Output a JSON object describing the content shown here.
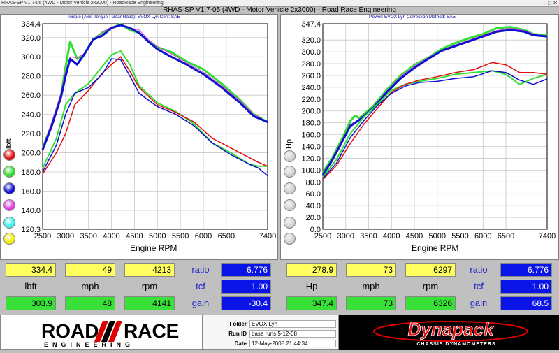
{
  "window": {
    "titlebar_text": "RHAS-SP V1.7-05  (4WD - Motor Vehicle 2x3000) - RoadRace Engineering",
    "main_title": "RHAS-SP V1.7-05   (4WD - Motor Vehicle 2x3000) - Road Race Engineering"
  },
  "left_panel": {
    "subtitle": "Torque (Axle Torque : Gear Ratio): EVOX Lyn     Corr: SAE",
    "ylabel": "lbft",
    "xlabel": "Engine RPM"
  },
  "right_panel": {
    "subtitle": "Power: EVOX Lyn     Correction Method: SAE",
    "ylabel": "Hp",
    "xlabel": "Engine RPM"
  },
  "legend_left": [
    {
      "color": "#e01010",
      "icon": "red-run-dot"
    },
    {
      "color": "#30e030",
      "icon": "green-run-dot"
    },
    {
      "color": "#1010d0",
      "icon": "blue-run-dot"
    },
    {
      "color": "#e040e0",
      "icon": "magenta-run-dot"
    },
    {
      "color": "#40f0f0",
      "icon": "cyan-run-dot"
    },
    {
      "color": "#f0f010",
      "icon": "yellow-run-dot"
    }
  ],
  "readouts": {
    "left": {
      "row1": [
        "334.4",
        "49",
        "4213"
      ],
      "labels": [
        "lbft",
        "mph",
        "rpm"
      ],
      "row3": [
        "303.9",
        "48",
        "4141"
      ],
      "ratio_label": "ratio",
      "ratio": "6.776",
      "tcf_label": "tcf",
      "tcf": "1.00",
      "gain_label": "gain",
      "gain": "-30.4"
    },
    "right": {
      "row1": [
        "278.9",
        "73",
        "6297"
      ],
      "labels": [
        "Hp",
        "mph",
        "rpm"
      ],
      "row3": [
        "347.4",
        "73",
        "6326"
      ],
      "ratio_label": "ratio",
      "ratio": "6.776",
      "tcf_label": "tcf",
      "tcf": "1.00",
      "gain_label": "gain",
      "gain": "68.5"
    }
  },
  "footer": {
    "folder_label": "Folder",
    "folder": "EVOX Lyn",
    "runid_label": "Run ID",
    "runid": "base runs 5-12-08",
    "date_label": "Date",
    "date": "12-May-2008  21:44:34",
    "rr_logo_text": "ROAD",
    "rr_logo_text2": "RACE",
    "rr_logo_sub": "ENGINEERING",
    "dp_logo_text": "Dynapack",
    "dp_logo_sub": "CHASSIS DYNAMOMETERS"
  },
  "chart_data": [
    {
      "type": "line",
      "title": "Torque (Axle Torque : Gear Ratio): EVOX Lyn     Corr: SAE",
      "xlabel": "Engine RPM",
      "ylabel": "lbft",
      "xlim": [
        2500,
        7400
      ],
      "ylim": [
        120.3,
        334.4
      ],
      "xticks": [
        "2500",
        "3000",
        "3500",
        "4000",
        "4500",
        "5000",
        "5500",
        "6000",
        "6500",
        "7400"
      ],
      "yticks": [
        "334.4",
        "320.0",
        "300.0",
        "280.0",
        "260.0",
        "240.0",
        "220.0",
        "200.0",
        "180.0",
        "160.0",
        "140.0",
        "120.3"
      ],
      "grid": true,
      "series": [
        {
          "color": "#30e030",
          "width": 3,
          "x": [
            2500,
            2700,
            2900,
            3000,
            3100,
            3150,
            3250,
            3400,
            3600,
            3800,
            4000,
            4200,
            4400,
            4600,
            4800,
            5000,
            5300,
            5600,
            6000,
            6400,
            6800,
            7100,
            7400
          ],
          "y": [
            205,
            230,
            260,
            290,
            316,
            310,
            298,
            302,
            318,
            325,
            330,
            334,
            328,
            325,
            316,
            310,
            305,
            296,
            287,
            272,
            255,
            240,
            232
          ]
        },
        {
          "color": "#e040e0",
          "width": 1,
          "x": [
            2500,
            2700,
            2900,
            3000,
            3100,
            3250,
            3400,
            3600,
            3800,
            4000,
            4200,
            4400,
            4600,
            4800,
            5000,
            5300,
            5600,
            6000,
            6400,
            6800,
            7100,
            7400
          ],
          "y": [
            205,
            232,
            262,
            285,
            300,
            299,
            303,
            318,
            326,
            331,
            333,
            330,
            328,
            318,
            311,
            303,
            295,
            284,
            270,
            254,
            240,
            232
          ]
        },
        {
          "color": "#1010d0",
          "width": 3,
          "x": [
            2500,
            2700,
            2900,
            3000,
            3100,
            3250,
            3400,
            3600,
            3800,
            4000,
            4200,
            4400,
            4600,
            4800,
            5000,
            5300,
            5600,
            6000,
            6400,
            6800,
            7100,
            7400
          ],
          "y": [
            203,
            228,
            258,
            280,
            298,
            292,
            302,
            318,
            322,
            330,
            333,
            330,
            325,
            316,
            308,
            300,
            293,
            282,
            268,
            252,
            238,
            232
          ]
        },
        {
          "color": "#30e030",
          "width": 2,
          "x": [
            2500,
            2800,
            3000,
            3200,
            3500,
            3800,
            4000,
            4200,
            4400,
            4600,
            5000,
            5400,
            5800,
            6200,
            6600,
            7000,
            7200,
            7400
          ],
          "y": [
            184,
            215,
            250,
            262,
            272,
            290,
            302,
            306,
            292,
            270,
            252,
            243,
            230,
            210,
            200,
            188,
            186,
            186
          ]
        },
        {
          "color": "#e01010",
          "width": 1.5,
          "x": [
            2500,
            2800,
            3000,
            3200,
            3500,
            3800,
            4000,
            4200,
            4400,
            4600,
            5000,
            5400,
            5800,
            6200,
            6600,
            7000,
            7200,
            7400
          ],
          "y": [
            178,
            200,
            220,
            250,
            265,
            283,
            292,
            300,
            285,
            268,
            250,
            242,
            232,
            215,
            205,
            195,
            190,
            186
          ]
        },
        {
          "color": "#1010d0",
          "width": 1.5,
          "x": [
            2500,
            2800,
            3000,
            3200,
            3500,
            3800,
            4000,
            4200,
            4400,
            4600,
            5000,
            5400,
            5800,
            6200,
            6600,
            7000,
            7200,
            7400
          ],
          "y": [
            180,
            208,
            240,
            262,
            268,
            282,
            298,
            297,
            280,
            262,
            248,
            240,
            228,
            210,
            198,
            188,
            184,
            176
          ]
        }
      ]
    },
    {
      "type": "line",
      "title": "Power: EVOX Lyn     Correction Method: SAE",
      "xlabel": "Engine RPM",
      "ylabel": "Hp",
      "xlim": [
        2500,
        7400
      ],
      "ylim": [
        0,
        347.4
      ],
      "xticks": [
        "2500",
        "3000",
        "3500",
        "4000",
        "4500",
        "5000",
        "5500",
        "6000",
        "6500",
        "7400"
      ],
      "yticks": [
        "347.4",
        "320.0",
        "300.0",
        "280.0",
        "260.0",
        "240.0",
        "220.0",
        "200.0",
        "180.0",
        "160.0",
        "140.0",
        "120.0",
        "100.0",
        "80.0",
        "60.0",
        "40.0",
        "20.0",
        "0.0"
      ],
      "grid": true,
      "series": [
        {
          "color": "#30e030",
          "width": 3,
          "x": [
            2500,
            2700,
            2900,
            3100,
            3200,
            3300,
            3600,
            3900,
            4200,
            4500,
            4800,
            5100,
            5400,
            5700,
            6000,
            6300,
            6600,
            6900,
            7100,
            7400
          ],
          "y": [
            96,
            120,
            150,
            183,
            192,
            188,
            208,
            236,
            260,
            278,
            290,
            305,
            315,
            323,
            330,
            340,
            342,
            337,
            330,
            328
          ]
        },
        {
          "color": "#e040e0",
          "width": 1,
          "x": [
            2500,
            2700,
            2900,
            3100,
            3300,
            3600,
            3900,
            4200,
            4500,
            4800,
            5100,
            5400,
            5700,
            6000,
            6300,
            6600,
            6900,
            7100,
            7400
          ],
          "y": [
            94,
            118,
            148,
            172,
            184,
            206,
            234,
            258,
            276,
            290,
            303,
            312,
            320,
            328,
            336,
            340,
            336,
            330,
            326
          ]
        },
        {
          "color": "#1010d0",
          "width": 3,
          "x": [
            2500,
            2700,
            2900,
            3100,
            3300,
            3600,
            3900,
            4200,
            4500,
            4800,
            5100,
            5400,
            5700,
            6000,
            6300,
            6600,
            6900,
            7100,
            7400
          ],
          "y": [
            92,
            116,
            145,
            175,
            185,
            205,
            232,
            255,
            273,
            288,
            302,
            310,
            318,
            326,
            334,
            337,
            334,
            328,
            326
          ]
        },
        {
          "color": "#30e030",
          "width": 2,
          "x": [
            2500,
            2800,
            3100,
            3400,
            3700,
            4000,
            4300,
            4600,
            5000,
            5400,
            5800,
            6200,
            6500,
            6800,
            7100,
            7400
          ],
          "y": [
            88,
            118,
            162,
            190,
            212,
            235,
            245,
            250,
            255,
            262,
            265,
            268,
            262,
            245,
            255,
            262
          ]
        },
        {
          "color": "#e01010",
          "width": 1.5,
          "x": [
            2500,
            2800,
            3100,
            3400,
            3700,
            4000,
            4300,
            4600,
            5000,
            5400,
            5800,
            6200,
            6500,
            6800,
            7100,
            7400
          ],
          "y": [
            84,
            108,
            145,
            178,
            205,
            232,
            245,
            252,
            258,
            265,
            270,
            282,
            278,
            265,
            265,
            262
          ]
        },
        {
          "color": "#1010d0",
          "width": 1.5,
          "x": [
            2500,
            2800,
            3100,
            3400,
            3700,
            4000,
            4300,
            4600,
            5000,
            5400,
            5800,
            6200,
            6500,
            6800,
            7100,
            7400
          ],
          "y": [
            86,
            112,
            155,
            184,
            210,
            230,
            242,
            248,
            250,
            255,
            258,
            268,
            265,
            252,
            245,
            254
          ]
        }
      ]
    }
  ]
}
